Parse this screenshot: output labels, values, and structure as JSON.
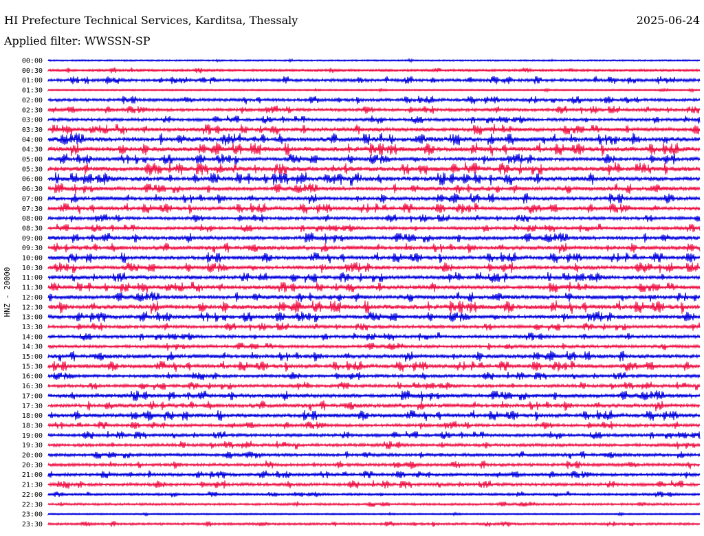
{
  "header": {
    "title": "HI Prefecture Technical Services, Karditsa, Thessaly",
    "date": "2025-06-24",
    "filter": "Applied filter: WWSSN-SP"
  },
  "chart_data": {
    "type": "line",
    "subtype": "helicorder",
    "ylabel": "HNZ - 20000",
    "rows": [
      "00:00",
      "00:30",
      "01:00",
      "01:30",
      "02:00",
      "02:30",
      "03:00",
      "03:30",
      "04:00",
      "04:30",
      "05:00",
      "05:30",
      "06:00",
      "06:30",
      "07:00",
      "07:30",
      "08:00",
      "08:30",
      "09:00",
      "09:30",
      "10:00",
      "10:30",
      "11:00",
      "11:30",
      "12:00",
      "12:30",
      "13:00",
      "13:30",
      "14:00",
      "14:30",
      "15:00",
      "15:30",
      "16:00",
      "16:30",
      "17:00",
      "17:30",
      "18:00",
      "18:30",
      "19:00",
      "19:30",
      "20:00",
      "20:30",
      "21:00",
      "21:30",
      "22:00",
      "22:30",
      "23:00",
      "23:30"
    ],
    "amplitude": [
      1,
      2,
      3,
      1,
      3,
      3,
      3,
      4,
      5,
      5,
      4,
      5,
      5,
      4,
      4,
      4,
      3,
      3,
      4,
      4,
      4,
      4,
      4,
      4,
      4,
      5,
      4,
      3,
      3,
      3,
      4,
      4,
      3,
      3,
      4,
      4,
      4,
      3,
      3,
      3,
      3,
      3,
      3,
      3,
      2,
      2,
      1,
      2
    ],
    "colors": [
      "#0000dd",
      "#ee1144"
    ],
    "grid": false
  }
}
